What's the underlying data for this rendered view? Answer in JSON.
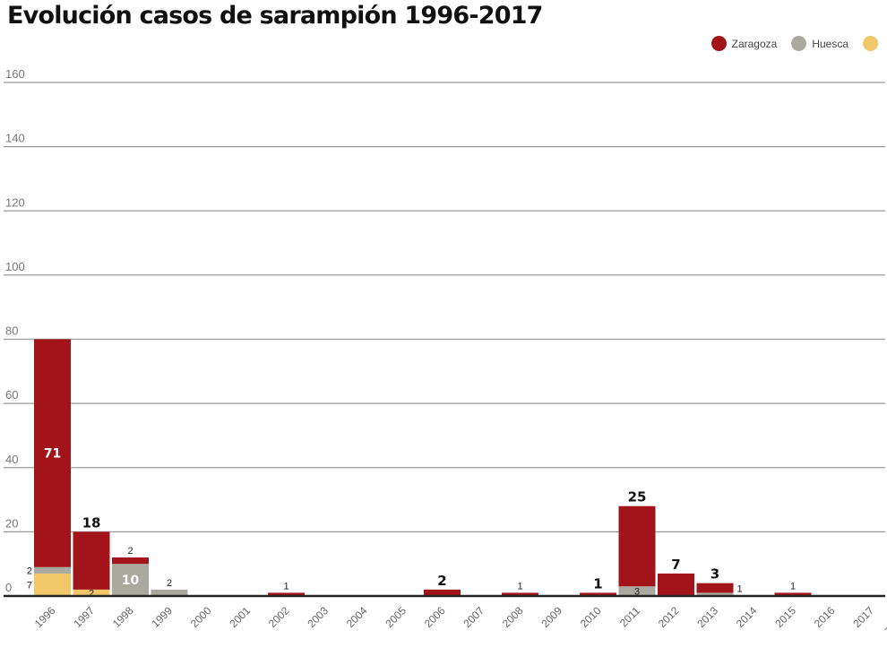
{
  "chart_data": {
    "type": "bar",
    "stacked": true,
    "title": "Evolución casos de sarampión 1996-2017",
    "xlabel": "",
    "ylabel": "",
    "ylim": [
      0,
      160
    ],
    "yticks": [
      "0",
      "20",
      "40",
      "60",
      "80",
      "100",
      "120",
      "140",
      "160"
    ],
    "grid": true,
    "legend_position": "top-right",
    "categories": [
      "1996",
      "1997",
      "1998",
      "1999",
      "2000",
      "2001",
      "2002",
      "2003",
      "2004",
      "2005",
      "2006",
      "2007",
      "2008",
      "2009",
      "2010",
      "2011",
      "2012",
      "2013",
      "2014",
      "2015",
      "2016",
      "2017",
      "TOTAL"
    ],
    "series": [
      {
        "name": "",
        "color": "#f1c76a",
        "values": [
          7,
          2,
          0,
          0,
          0,
          0,
          0,
          0,
          0,
          0,
          0,
          0,
          0,
          0,
          0,
          0,
          0,
          0,
          0,
          0,
          0,
          0,
          0
        ]
      },
      {
        "name": "Huesca",
        "color": "#a9a9a0",
        "values": [
          2,
          0,
          10,
          2,
          0,
          0,
          0,
          0,
          0,
          0,
          0,
          0,
          0,
          0,
          0,
          3,
          0,
          1,
          0,
          0,
          0,
          0,
          0
        ]
      },
      {
        "name": "Zaragoza",
        "color": "#a3141a",
        "values": [
          71,
          18,
          2,
          0,
          0,
          0,
          1,
          0,
          0,
          0,
          2,
          0,
          1,
          0,
          1,
          25,
          7,
          3,
          0,
          1,
          0,
          0,
          0
        ]
      }
    ],
    "annotations": [
      {
        "category": "1996",
        "series": "Zaragoza",
        "text": "71",
        "style": "inner"
      },
      {
        "category": "1996",
        "series": "",
        "text": "7",
        "style": "left"
      },
      {
        "category": "1996",
        "series": "Huesca",
        "text": "2",
        "style": "left"
      },
      {
        "category": "1997",
        "series": "",
        "text": "2",
        "style": "small"
      },
      {
        "category": "1997",
        "series": "Zaragoza",
        "text": "18",
        "style": "top"
      },
      {
        "category": "1998",
        "series": "Huesca",
        "text": "10",
        "style": "inner"
      },
      {
        "category": "1998",
        "series": "Zaragoza",
        "text": "2",
        "style": "topsmall"
      },
      {
        "category": "1999",
        "series": "Huesca",
        "text": "2",
        "style": "topsmall"
      },
      {
        "category": "2002",
        "series": "Zaragoza",
        "text": "1",
        "style": "topsmall"
      },
      {
        "category": "2006",
        "series": "Zaragoza",
        "text": "2",
        "style": "top"
      },
      {
        "category": "2008",
        "series": "Zaragoza",
        "text": "1",
        "style": "topsmall"
      },
      {
        "category": "2010",
        "series": "Zaragoza",
        "text": "1",
        "style": "top"
      },
      {
        "category": "2011",
        "series": "Huesca",
        "text": "3",
        "style": "small"
      },
      {
        "category": "2011",
        "series": "Zaragoza",
        "text": "25",
        "style": "top"
      },
      {
        "category": "2012",
        "series": "Zaragoza",
        "text": "7",
        "style": "top"
      },
      {
        "category": "2013",
        "series": "Zaragoza",
        "text": "3",
        "style": "top"
      },
      {
        "category": "2013",
        "series": "Huesca",
        "text": "1",
        "style": "rightsmall"
      },
      {
        "category": "2015",
        "series": "Zaragoza",
        "text": "1",
        "style": "topsmall"
      }
    ]
  }
}
